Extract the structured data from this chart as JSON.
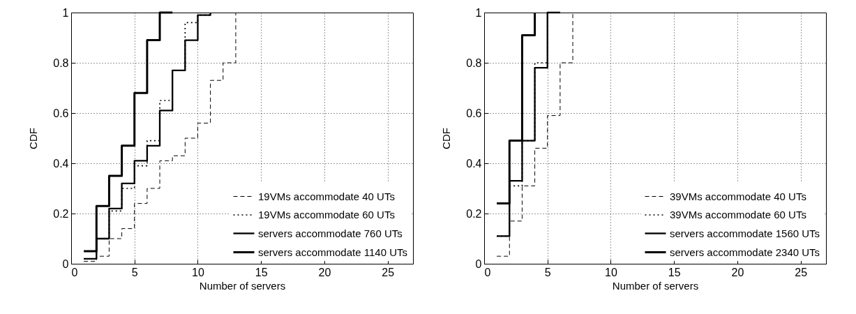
{
  "chart_data": [
    {
      "type": "step",
      "xlabel": "Number of servers",
      "ylabel": "CDF",
      "xlim": [
        0,
        27
      ],
      "xticks": [
        0,
        5,
        10,
        15,
        20,
        25
      ],
      "ylim": [
        0,
        1
      ],
      "yticks": [
        0,
        0.2,
        0.4,
        0.6,
        0.8,
        1
      ],
      "grid": true,
      "legend": "bottom right",
      "series": [
        {
          "name": "19VMs accommodate 40 UTs",
          "color": "#000000",
          "line_style": "dashed",
          "x": [
            1,
            2,
            3,
            4,
            5,
            6,
            7,
            8,
            9,
            10,
            11,
            12,
            13
          ],
          "values": [
            0.01,
            0.03,
            0.1,
            0.14,
            0.24,
            0.3,
            0.41,
            0.43,
            0.5,
            0.56,
            0.73,
            0.8,
            1
          ]
        },
        {
          "name": "19VMs accommodate 60 UTs",
          "color": "#000000",
          "line_style": "dotted",
          "x": [
            1,
            2,
            3,
            4,
            5,
            6,
            7,
            8,
            9,
            10,
            11
          ],
          "values": [
            0.02,
            0.1,
            0.21,
            0.3,
            0.39,
            0.49,
            0.65,
            0.77,
            0.96,
            0.99,
            1
          ]
        },
        {
          "name": "servers accommodate 760 UTs",
          "color": "#000000",
          "line_style": "solid",
          "x": [
            1,
            2,
            3,
            4,
            5,
            6,
            7,
            8,
            9,
            10,
            11
          ],
          "values": [
            0.02,
            0.1,
            0.22,
            0.32,
            0.41,
            0.47,
            0.61,
            0.77,
            0.89,
            0.99,
            1
          ]
        },
        {
          "name": "servers accommodate 1140 UTs",
          "color": "#000000",
          "line_style": "solid",
          "x": [
            1,
            2,
            3,
            4,
            5,
            6,
            7,
            8
          ],
          "values": [
            0.05,
            0.23,
            0.35,
            0.47,
            0.68,
            0.89,
            1,
            1
          ]
        }
      ]
    },
    {
      "type": "step",
      "xlabel": "Number of servers",
      "ylabel": "CDF",
      "xlim": [
        0,
        27
      ],
      "xticks": [
        0,
        5,
        10,
        15,
        20,
        25
      ],
      "ylim": [
        0,
        1
      ],
      "yticks": [
        0,
        0.2,
        0.4,
        0.6,
        0.8,
        1
      ],
      "grid": true,
      "legend": "bottom right",
      "series": [
        {
          "name": "39VMs accommodate 40 UTs",
          "color": "#000000",
          "line_style": "dashed",
          "x": [
            1,
            2,
            3,
            4,
            5,
            6,
            7
          ],
          "values": [
            0.03,
            0.17,
            0.31,
            0.46,
            0.59,
            0.8,
            1
          ]
        },
        {
          "name": "39VMs accommodate 60 UTs",
          "color": "#000000",
          "line_style": "dotted",
          "x": [
            1,
            2,
            3,
            4,
            5
          ],
          "values": [
            0.11,
            0.31,
            0.49,
            0.8,
            1
          ]
        },
        {
          "name": "servers accommodate 1560 UTs",
          "color": "#000000",
          "line_style": "solid",
          "x": [
            1,
            2,
            3,
            4,
            5,
            6
          ],
          "values": [
            0.11,
            0.33,
            0.49,
            0.78,
            1,
            1
          ]
        },
        {
          "name": "servers accommodate 2340 UTs",
          "color": "#000000",
          "line_style": "solid",
          "x": [
            1,
            2,
            3,
            4
          ],
          "values": [
            0.24,
            0.49,
            0.91,
            1
          ]
        }
      ]
    }
  ]
}
